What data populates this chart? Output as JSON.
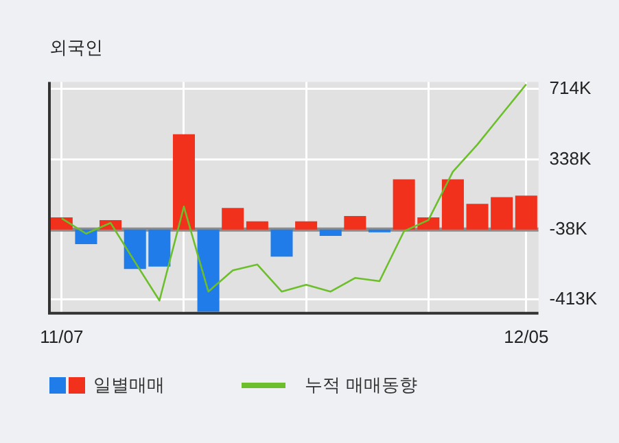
{
  "chart_data": {
    "type": "bar",
    "title": "외국인",
    "categories": [
      "11/07",
      null,
      null,
      null,
      null,
      null,
      null,
      null,
      null,
      null,
      null,
      null,
      null,
      null,
      null,
      null,
      null,
      null,
      null,
      "12/05"
    ],
    "series": [
      {
        "name": "일별매매",
        "colors": [
          "#f2311d",
          "#1f7ce8",
          "#f2311d",
          "#1f7ce8",
          "#1f7ce8",
          "#f2311d",
          "#1f7ce8",
          "#f2311d",
          "#f2311d",
          "#1f7ce8",
          "#f2311d",
          "#1f7ce8",
          "#f2311d",
          "#1f7ce8",
          "#f2311d",
          "#f2311d",
          "#f2311d",
          "#f2311d",
          "#f2311d",
          "#f2311d"
        ],
        "base": [
          -38,
          -38,
          -38,
          -38,
          -38,
          -38,
          -38,
          -38,
          -38,
          -38,
          -38,
          -38,
          -38,
          -38,
          -38,
          -38,
          -38,
          -38,
          -38,
          -38
        ],
        "values": [
          65,
          -78,
          51,
          -211,
          -198,
          510,
          -440,
          116,
          44,
          -145,
          44,
          -34,
          73,
          -15,
          269,
          65,
          269,
          138,
          174,
          182
        ]
      },
      {
        "type": "line",
        "name": "누적 매매동향",
        "color": "#6cbf2a",
        "values": [
          22,
          -60,
          -2,
          -212,
          -418,
          85,
          -370,
          -256,
          -225,
          -370,
          -333,
          -370,
          -297,
          -314,
          -47,
          13,
          272,
          417,
          579,
          740
        ]
      }
    ],
    "ylim": [
      -486,
      752
    ],
    "yticks": [
      {
        "value": 714,
        "label": "714K"
      },
      {
        "value": 338,
        "label": "338K"
      },
      {
        "value": -38,
        "label": "-38K"
      },
      {
        "value": -413,
        "label": "-413K"
      }
    ],
    "ref_lines": [
      {
        "axis": "y",
        "value": -38,
        "color": "#8c8c8c"
      }
    ],
    "grid": true,
    "legend": "bottom",
    "marker": "none",
    "line_style": "solid"
  }
}
